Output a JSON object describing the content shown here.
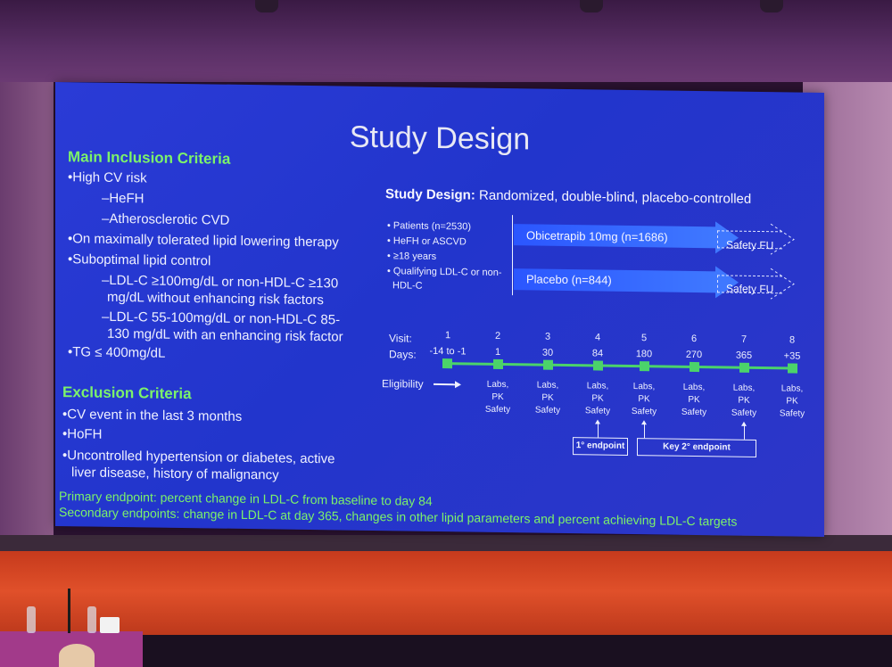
{
  "slide": {
    "title": "Study Design",
    "inclusion": {
      "heading": "Main Inclusion Criteria",
      "items": [
        "•High CV risk",
        "–HeFH",
        "–Atherosclerotic CVD",
        "•On maximally tolerated lipid lowering therapy",
        "•Suboptimal lipid control",
        "–LDL-C ≥100mg/dL or non-HDL-C ≥130",
        "mg/dL without enhancing risk factors",
        "–LDL-C 55-100mg/dL or non-HDL-C 85-",
        "130 mg/dL with an enhancing risk factor",
        "•TG ≤ 400mg/dL"
      ]
    },
    "exclusion": {
      "heading": "Exclusion Criteria",
      "items": [
        "•CV event in the last 3 months",
        "•HoFH",
        "•Uncontrolled hypertension or diabetes, active",
        "liver disease, history of malignancy"
      ]
    },
    "endpoints": {
      "primary": "Primary endpoint: percent change in LDL-C from baseline to day 84",
      "secondary": "Secondary endpoints: change in LDL-C at day 365, changes in other lipid parameters and percent achieving LDL-C targets"
    },
    "design": {
      "label": "Study Design:",
      "value": "Randomized, double-blind, placebo-controlled",
      "patients": [
        "• Patients (n=2530)",
        "• HeFH or ASCVD",
        "• ≥18 years",
        "• Qualifying LDL-C or non-",
        "HDL-C"
      ],
      "arm1": "Obicetrapib 10mg (n=1686)",
      "arm2": "Placebo (n=844)",
      "followup": "Safety FU",
      "visit_label": "Visit:",
      "days_label": "Days:",
      "eligibility": "Eligibility",
      "visits": [
        {
          "visit": "1",
          "day": "-14 to -1",
          "labs": "",
          "pk": "",
          "safety": ""
        },
        {
          "visit": "2",
          "day": "1",
          "labs": "Labs,",
          "pk": "PK",
          "safety": "Safety"
        },
        {
          "visit": "3",
          "day": "30",
          "labs": "Labs,",
          "pk": "PK",
          "safety": "Safety"
        },
        {
          "visit": "4",
          "day": "84",
          "labs": "Labs,",
          "pk": "PK",
          "safety": "Safety"
        },
        {
          "visit": "5",
          "day": "180",
          "labs": "Labs,",
          "pk": "PK",
          "safety": "Safety"
        },
        {
          "visit": "6",
          "day": "270",
          "labs": "Labs,",
          "pk": "PK",
          "safety": "Safety"
        },
        {
          "visit": "7",
          "day": "365",
          "labs": "Labs,",
          "pk": "PK",
          "safety": "Safety"
        },
        {
          "visit": "8",
          "day": "+35",
          "labs": "Labs,",
          "pk": "PK",
          "safety": "Safety"
        }
      ],
      "primary_endpoint_box": "1° endpoint",
      "key_secondary_box": "Key 2° endpoint"
    }
  },
  "colors": {
    "slide_bg": "#2235cc",
    "heading_green": "#7cf26a",
    "text": "#eef0ff",
    "arrow": "#3f78ff",
    "stage": "#e0502a"
  }
}
